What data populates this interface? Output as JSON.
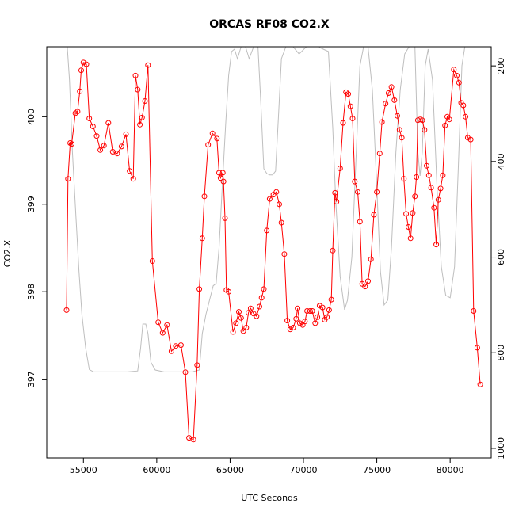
{
  "chart_data": {
    "type": "line",
    "title": "ORCAS RF08 CO2.X",
    "xlabel": "UTC Seconds",
    "ylabel": "CO2.X",
    "xlim": [
      52500,
      82800
    ],
    "ylim": [
      396.1,
      400.8
    ],
    "y2lim": [
      1020,
      160
    ],
    "x_ticks": [
      55000,
      60000,
      65000,
      70000,
      75000,
      80000
    ],
    "y_ticks": [
      397,
      398,
      399,
      400
    ],
    "y2_ticks": [
      200,
      400,
      600,
      800,
      1000
    ],
    "grid": false,
    "colors": {
      "co2": "#ff0000",
      "pressure": "#bebebe"
    },
    "series": [
      {
        "role": "co2",
        "points": [
          [
            53850,
            397.79
          ],
          [
            53950,
            399.29
          ],
          [
            54100,
            399.7
          ],
          [
            54200,
            399.69
          ],
          [
            54450,
            400.04
          ],
          [
            54600,
            400.06
          ],
          [
            54750,
            400.29
          ],
          [
            54850,
            400.53
          ],
          [
            55000,
            400.62
          ],
          [
            55200,
            400.6
          ],
          [
            55400,
            399.98
          ],
          [
            55650,
            399.89
          ],
          [
            55900,
            399.78
          ],
          [
            56150,
            399.62
          ],
          [
            56400,
            399.67
          ],
          [
            56700,
            399.93
          ],
          [
            57000,
            399.6
          ],
          [
            57300,
            399.58
          ],
          [
            57600,
            399.66
          ],
          [
            57900,
            399.8
          ],
          [
            58150,
            399.38
          ],
          [
            58400,
            399.29
          ],
          [
            58550,
            400.47
          ],
          [
            58700,
            400.31
          ],
          [
            58850,
            399.91
          ],
          [
            59000,
            399.99
          ],
          [
            59200,
            400.18
          ],
          [
            59400,
            400.59
          ],
          [
            59700,
            398.35
          ],
          [
            60100,
            397.65
          ],
          [
            60400,
            397.53
          ],
          [
            60700,
            397.62
          ],
          [
            61000,
            397.32
          ],
          [
            61300,
            397.38
          ],
          [
            61650,
            397.39
          ],
          [
            61950,
            397.08
          ],
          [
            62200,
            396.33
          ],
          [
            62500,
            396.31
          ],
          [
            62750,
            397.16
          ],
          [
            62900,
            398.03
          ],
          [
            63100,
            398.61
          ],
          [
            63250,
            399.09
          ],
          [
            63500,
            399.68
          ],
          [
            63800,
            399.81
          ],
          [
            64100,
            399.75
          ],
          [
            64250,
            399.36
          ],
          [
            64350,
            399.3
          ],
          [
            64500,
            399.36
          ],
          [
            64550,
            399.26
          ],
          [
            64650,
            398.84
          ],
          [
            64750,
            398.02
          ],
          [
            64900,
            398.0
          ],
          [
            65200,
            397.54
          ],
          [
            65400,
            397.64
          ],
          [
            65600,
            397.77
          ],
          [
            65750,
            397.7
          ],
          [
            65900,
            397.55
          ],
          [
            66100,
            397.59
          ],
          [
            66250,
            397.76
          ],
          [
            66400,
            397.81
          ],
          [
            66600,
            397.75
          ],
          [
            66800,
            397.72
          ],
          [
            67000,
            397.83
          ],
          [
            67150,
            397.93
          ],
          [
            67300,
            398.03
          ],
          [
            67500,
            398.7
          ],
          [
            67700,
            399.06
          ],
          [
            67950,
            399.11
          ],
          [
            68150,
            399.14
          ],
          [
            68350,
            399.0
          ],
          [
            68500,
            398.79
          ],
          [
            68700,
            398.43
          ],
          [
            68900,
            397.67
          ],
          [
            69100,
            397.57
          ],
          [
            69300,
            397.59
          ],
          [
            69500,
            397.69
          ],
          [
            69600,
            397.81
          ],
          [
            69750,
            397.64
          ],
          [
            69950,
            397.62
          ],
          [
            70100,
            397.66
          ],
          [
            70250,
            397.78
          ],
          [
            70450,
            397.78
          ],
          [
            70600,
            397.78
          ],
          [
            70800,
            397.64
          ],
          [
            70950,
            397.71
          ],
          [
            71100,
            397.84
          ],
          [
            71300,
            397.82
          ],
          [
            71450,
            397.68
          ],
          [
            71600,
            397.71
          ],
          [
            71750,
            397.79
          ],
          [
            71900,
            397.91
          ],
          [
            72000,
            398.47
          ],
          [
            72150,
            399.13
          ],
          [
            72250,
            399.03
          ],
          [
            72500,
            399.41
          ],
          [
            72700,
            399.93
          ],
          [
            72900,
            400.28
          ],
          [
            73050,
            400.26
          ],
          [
            73200,
            400.12
          ],
          [
            73350,
            399.98
          ],
          [
            73500,
            399.26
          ],
          [
            73700,
            399.14
          ],
          [
            73850,
            398.8
          ],
          [
            74000,
            398.09
          ],
          [
            74200,
            398.06
          ],
          [
            74400,
            398.12
          ],
          [
            74600,
            398.37
          ],
          [
            74800,
            398.88
          ],
          [
            75000,
            399.14
          ],
          [
            75200,
            399.58
          ],
          [
            75350,
            399.94
          ],
          [
            75600,
            400.15
          ],
          [
            75800,
            400.27
          ],
          [
            76000,
            400.34
          ],
          [
            76200,
            400.19
          ],
          [
            76400,
            400.01
          ],
          [
            76550,
            399.85
          ],
          [
            76700,
            399.76
          ],
          [
            76850,
            399.29
          ],
          [
            77000,
            398.89
          ],
          [
            77150,
            398.74
          ],
          [
            77300,
            398.61
          ],
          [
            77450,
            398.9
          ],
          [
            77600,
            399.09
          ],
          [
            77700,
            399.31
          ],
          [
            77800,
            399.96
          ],
          [
            77950,
            399.97
          ],
          [
            78100,
            399.96
          ],
          [
            78250,
            399.85
          ],
          [
            78400,
            399.44
          ],
          [
            78550,
            399.33
          ],
          [
            78700,
            399.19
          ],
          [
            78900,
            398.96
          ],
          [
            79050,
            398.54
          ],
          [
            79200,
            399.05
          ],
          [
            79350,
            399.18
          ],
          [
            79500,
            399.33
          ],
          [
            79650,
            399.9
          ],
          [
            79800,
            400.0
          ],
          [
            79950,
            399.97
          ],
          [
            80250,
            400.54
          ],
          [
            80450,
            400.47
          ],
          [
            80600,
            400.39
          ],
          [
            80750,
            400.16
          ],
          [
            80900,
            400.13
          ],
          [
            81050,
            400.0
          ],
          [
            81200,
            399.76
          ],
          [
            81400,
            399.74
          ],
          [
            81600,
            397.78
          ],
          [
            81850,
            397.36
          ],
          [
            82050,
            396.94
          ]
        ]
      },
      {
        "role": "pressure",
        "points": [
          [
            53900,
            160
          ],
          [
            54050,
            230
          ],
          [
            54250,
            380
          ],
          [
            54500,
            520
          ],
          [
            54700,
            630
          ],
          [
            54900,
            720
          ],
          [
            55150,
            790
          ],
          [
            55400,
            835
          ],
          [
            55700,
            840
          ],
          [
            56500,
            840
          ],
          [
            58000,
            840
          ],
          [
            58700,
            838
          ],
          [
            58900,
            790
          ],
          [
            59050,
            740
          ],
          [
            59250,
            740
          ],
          [
            59400,
            760
          ],
          [
            59600,
            820
          ],
          [
            59900,
            836
          ],
          [
            60500,
            840
          ],
          [
            61500,
            840
          ],
          [
            62400,
            840
          ],
          [
            62900,
            836
          ],
          [
            63100,
            760
          ],
          [
            63350,
            720
          ],
          [
            63600,
            690
          ],
          [
            63850,
            660
          ],
          [
            64050,
            655
          ],
          [
            64250,
            580
          ],
          [
            64450,
            460
          ],
          [
            64700,
            320
          ],
          [
            64900,
            220
          ],
          [
            65100,
            170
          ],
          [
            65300,
            165
          ],
          [
            65500,
            185
          ],
          [
            65750,
            160
          ],
          [
            66050,
            160
          ],
          [
            66300,
            185
          ],
          [
            66600,
            160
          ],
          [
            66900,
            160
          ],
          [
            67100,
            280
          ],
          [
            67300,
            415
          ],
          [
            67500,
            425
          ],
          [
            67700,
            428
          ],
          [
            67900,
            428
          ],
          [
            68100,
            420
          ],
          [
            68300,
            305
          ],
          [
            68500,
            185
          ],
          [
            68800,
            160
          ],
          [
            69300,
            160
          ],
          [
            69700,
            175
          ],
          [
            70200,
            160
          ],
          [
            71000,
            160
          ],
          [
            71700,
            170
          ],
          [
            72000,
            330
          ],
          [
            72200,
            480
          ],
          [
            72500,
            640
          ],
          [
            72800,
            710
          ],
          [
            73000,
            690
          ],
          [
            73300,
            600
          ],
          [
            73600,
            380
          ],
          [
            73850,
            200
          ],
          [
            74100,
            160
          ],
          [
            74400,
            160
          ],
          [
            74700,
            250
          ],
          [
            74950,
            420
          ],
          [
            75250,
            630
          ],
          [
            75500,
            700
          ],
          [
            75750,
            690
          ],
          [
            76000,
            580
          ],
          [
            76300,
            380
          ],
          [
            76600,
            250
          ],
          [
            76900,
            175
          ],
          [
            77200,
            160
          ],
          [
            77600,
            160
          ],
          [
            77800,
            380
          ],
          [
            77950,
            430
          ],
          [
            78100,
            380
          ],
          [
            78300,
            200
          ],
          [
            78500,
            165
          ],
          [
            78800,
            230
          ],
          [
            79100,
            450
          ],
          [
            79400,
            620
          ],
          [
            79700,
            680
          ],
          [
            80000,
            685
          ],
          [
            80300,
            620
          ],
          [
            80550,
            420
          ],
          [
            80800,
            200
          ],
          [
            81000,
            160
          ],
          [
            81300,
            160
          ]
        ]
      }
    ]
  }
}
